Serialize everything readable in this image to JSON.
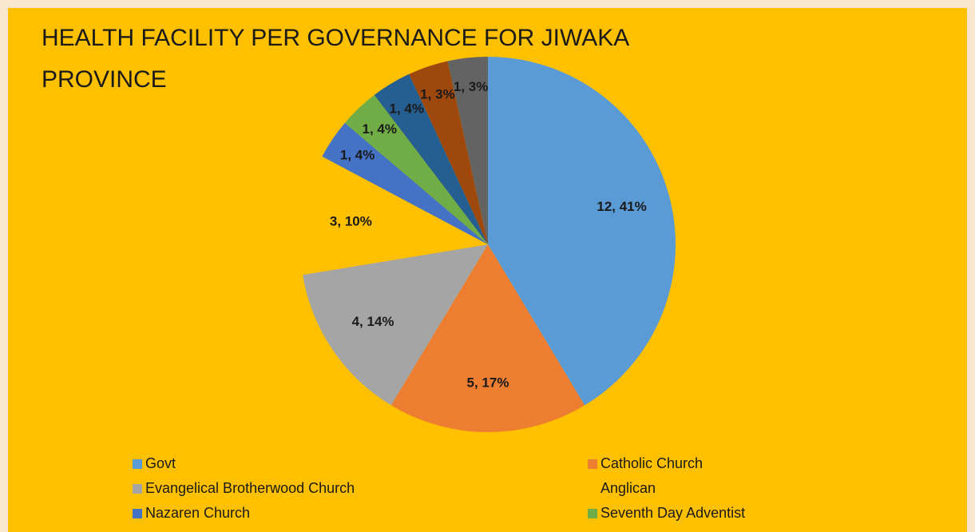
{
  "chart_data": {
    "type": "pie",
    "title": "HEALTH FACILITY PER GOVERNANCE FOR JIWAKA PROVINCE",
    "categories": [
      "Govt",
      "Catholic Church",
      "Evangelical Brotherwood Church",
      "Anglican",
      "Nazaren Church",
      "Seventh Day Adventist",
      null,
      null,
      null
    ],
    "values": [
      12,
      5,
      4,
      3,
      1,
      1,
      1,
      1,
      1
    ],
    "value_labels": [
      "12, 41%",
      "5, 17%",
      "4, 14%",
      "3, 10%",
      "1, 4%",
      "1, 4%",
      "1, 4%",
      "1, 3%",
      "1, 3%"
    ],
    "colors": [
      "#5b9bd5",
      "#ed7d31",
      "#a5a5a5",
      "#ffc000",
      "#4472c4",
      "#70ad47",
      "#255e91",
      "#9e480e",
      "#636363"
    ],
    "legend": "bottom"
  }
}
